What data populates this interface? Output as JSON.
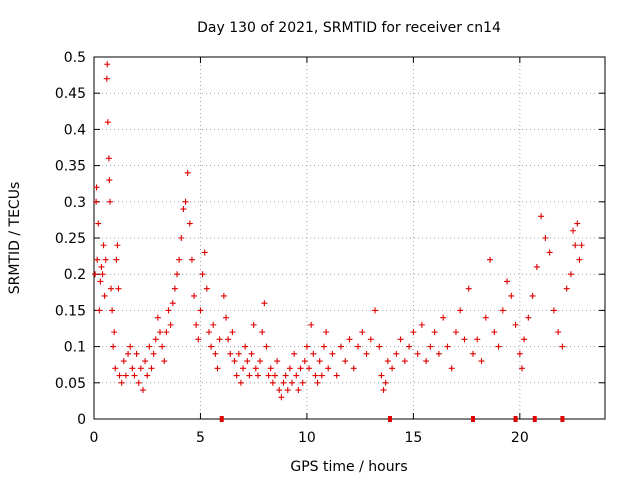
{
  "chart_data": {
    "type": "scatter",
    "title": "Day 130 of 2021, SRMTID for receiver cn14",
    "xlabel": "GPS time / hours",
    "ylabel": "SRMTID / TECUs",
    "xlim": [
      0,
      24
    ],
    "ylim": [
      0,
      0.5
    ],
    "x_ticks": [
      0,
      5,
      10,
      15,
      20
    ],
    "y_ticks": [
      0,
      0.05,
      0.1,
      0.15,
      0.2,
      0.25,
      0.3,
      0.35,
      0.4,
      0.45,
      0.5
    ],
    "x_tick_labels": [
      "0",
      "5",
      "10",
      "15",
      "20"
    ],
    "y_tick_labels": [
      "0",
      "0.05",
      "0.1",
      "0.15",
      "0.2",
      "0.25",
      "0.3",
      "0.35",
      "0.4",
      "0.45",
      "0.5"
    ],
    "grid": true,
    "marker": "+",
    "color": "#e00000",
    "series": [
      {
        "name": "SRMTID",
        "points": [
          [
            0.05,
            0.2
          ],
          [
            0.1,
            0.3
          ],
          [
            0.12,
            0.32
          ],
          [
            0.15,
            0.22
          ],
          [
            0.2,
            0.27
          ],
          [
            0.25,
            0.15
          ],
          [
            0.3,
            0.19
          ],
          [
            0.35,
            0.21
          ],
          [
            0.4,
            0.2
          ],
          [
            0.45,
            0.24
          ],
          [
            0.5,
            0.17
          ],
          [
            0.55,
            0.22
          ],
          [
            0.6,
            0.47
          ],
          [
            0.62,
            0.49
          ],
          [
            0.65,
            0.41
          ],
          [
            0.7,
            0.36
          ],
          [
            0.72,
            0.33
          ],
          [
            0.75,
            0.3
          ],
          [
            0.8,
            0.18
          ],
          [
            0.85,
            0.15
          ],
          [
            0.9,
            0.1
          ],
          [
            0.95,
            0.12
          ],
          [
            1.0,
            0.07
          ],
          [
            1.05,
            0.22
          ],
          [
            1.1,
            0.24
          ],
          [
            1.15,
            0.18
          ],
          [
            1.2,
            0.06
          ],
          [
            1.3,
            0.05
          ],
          [
            1.4,
            0.08
          ],
          [
            1.5,
            0.06
          ],
          [
            1.6,
            0.09
          ],
          [
            1.7,
            0.1
          ],
          [
            1.8,
            0.07
          ],
          [
            1.9,
            0.06
          ],
          [
            2.0,
            0.09
          ],
          [
            2.1,
            0.05
          ],
          [
            2.2,
            0.07
          ],
          [
            2.3,
            0.04
          ],
          [
            2.4,
            0.08
          ],
          [
            2.5,
            0.06
          ],
          [
            2.6,
            0.1
          ],
          [
            2.7,
            0.07
          ],
          [
            2.8,
            0.09
          ],
          [
            2.9,
            0.11
          ],
          [
            3.0,
            0.14
          ],
          [
            3.1,
            0.12
          ],
          [
            3.2,
            0.1
          ],
          [
            3.3,
            0.08
          ],
          [
            3.4,
            0.12
          ],
          [
            3.5,
            0.15
          ],
          [
            3.6,
            0.13
          ],
          [
            3.7,
            0.16
          ],
          [
            3.8,
            0.18
          ],
          [
            3.9,
            0.2
          ],
          [
            4.0,
            0.22
          ],
          [
            4.1,
            0.25
          ],
          [
            4.2,
            0.29
          ],
          [
            4.3,
            0.3
          ],
          [
            4.4,
            0.34
          ],
          [
            4.5,
            0.27
          ],
          [
            4.6,
            0.22
          ],
          [
            4.7,
            0.17
          ],
          [
            4.8,
            0.13
          ],
          [
            4.9,
            0.11
          ],
          [
            5.0,
            0.15
          ],
          [
            5.1,
            0.2
          ],
          [
            5.2,
            0.23
          ],
          [
            5.3,
            0.18
          ],
          [
            5.4,
            0.12
          ],
          [
            5.5,
            0.1
          ],
          [
            5.6,
            0.13
          ],
          [
            5.7,
            0.09
          ],
          [
            5.8,
            0.07
          ],
          [
            5.9,
            0.11
          ],
          [
            6.1,
            0.17
          ],
          [
            6.2,
            0.14
          ],
          [
            6.3,
            0.11
          ],
          [
            6.4,
            0.09
          ],
          [
            6.5,
            0.12
          ],
          [
            6.6,
            0.08
          ],
          [
            6.7,
            0.06
          ],
          [
            6.8,
            0.09
          ],
          [
            6.9,
            0.05
          ],
          [
            7.0,
            0.07
          ],
          [
            7.1,
            0.1
          ],
          [
            7.2,
            0.08
          ],
          [
            7.3,
            0.06
          ],
          [
            7.4,
            0.09
          ],
          [
            7.5,
            0.13
          ],
          [
            7.6,
            0.07
          ],
          [
            7.7,
            0.06
          ],
          [
            7.8,
            0.08
          ],
          [
            7.9,
            0.12
          ],
          [
            8.0,
            0.16
          ],
          [
            8.1,
            0.1
          ],
          [
            8.2,
            0.06
          ],
          [
            8.3,
            0.07
          ],
          [
            8.4,
            0.05
          ],
          [
            8.5,
            0.06
          ],
          [
            8.6,
            0.08
          ],
          [
            8.7,
            0.04
          ],
          [
            8.8,
            0.03
          ],
          [
            8.9,
            0.05
          ],
          [
            9.0,
            0.06
          ],
          [
            9.1,
            0.04
          ],
          [
            9.2,
            0.07
          ],
          [
            9.3,
            0.05
          ],
          [
            9.4,
            0.09
          ],
          [
            9.5,
            0.06
          ],
          [
            9.6,
            0.04
          ],
          [
            9.7,
            0.07
          ],
          [
            9.8,
            0.05
          ],
          [
            9.9,
            0.08
          ],
          [
            10.0,
            0.1
          ],
          [
            10.1,
            0.07
          ],
          [
            10.2,
            0.13
          ],
          [
            10.3,
            0.09
          ],
          [
            10.4,
            0.06
          ],
          [
            10.5,
            0.05
          ],
          [
            10.6,
            0.08
          ],
          [
            10.7,
            0.06
          ],
          [
            10.8,
            0.1
          ],
          [
            10.9,
            0.12
          ],
          [
            11.0,
            0.07
          ],
          [
            11.2,
            0.09
          ],
          [
            11.4,
            0.06
          ],
          [
            11.6,
            0.1
          ],
          [
            11.8,
            0.08
          ],
          [
            12.0,
            0.11
          ],
          [
            12.2,
            0.07
          ],
          [
            12.4,
            0.1
          ],
          [
            12.6,
            0.12
          ],
          [
            12.8,
            0.09
          ],
          [
            13.0,
            0.11
          ],
          [
            13.2,
            0.15
          ],
          [
            13.4,
            0.1
          ],
          [
            13.5,
            0.06
          ],
          [
            13.6,
            0.04
          ],
          [
            13.7,
            0.05
          ],
          [
            13.8,
            0.08
          ],
          [
            14.0,
            0.07
          ],
          [
            14.2,
            0.09
          ],
          [
            14.4,
            0.11
          ],
          [
            14.6,
            0.08
          ],
          [
            14.8,
            0.1
          ],
          [
            15.0,
            0.12
          ],
          [
            15.2,
            0.09
          ],
          [
            15.4,
            0.13
          ],
          [
            15.6,
            0.08
          ],
          [
            15.8,
            0.1
          ],
          [
            16.0,
            0.12
          ],
          [
            16.2,
            0.09
          ],
          [
            16.4,
            0.14
          ],
          [
            16.6,
            0.1
          ],
          [
            16.8,
            0.07
          ],
          [
            17.0,
            0.12
          ],
          [
            17.2,
            0.15
          ],
          [
            17.4,
            0.11
          ],
          [
            17.6,
            0.18
          ],
          [
            17.8,
            0.09
          ],
          [
            18.0,
            0.11
          ],
          [
            18.2,
            0.08
          ],
          [
            18.4,
            0.14
          ],
          [
            18.6,
            0.22
          ],
          [
            18.8,
            0.12
          ],
          [
            19.0,
            0.1
          ],
          [
            19.2,
            0.15
          ],
          [
            19.4,
            0.19
          ],
          [
            19.6,
            0.17
          ],
          [
            19.8,
            0.13
          ],
          [
            20.0,
            0.09
          ],
          [
            20.1,
            0.07
          ],
          [
            20.2,
            0.11
          ],
          [
            20.4,
            0.14
          ],
          [
            20.6,
            0.17
          ],
          [
            20.8,
            0.21
          ],
          [
            21.0,
            0.28
          ],
          [
            21.2,
            0.25
          ],
          [
            21.4,
            0.23
          ],
          [
            21.6,
            0.15
          ],
          [
            21.8,
            0.12
          ],
          [
            22.0,
            0.1
          ],
          [
            22.2,
            0.18
          ],
          [
            22.4,
            0.2
          ],
          [
            22.5,
            0.26
          ],
          [
            22.6,
            0.24
          ],
          [
            22.7,
            0.27
          ],
          [
            22.8,
            0.22
          ],
          [
            22.9,
            0.24
          ]
        ]
      }
    ],
    "data_gaps_hours": [
      6.0,
      13.9,
      17.8,
      19.8,
      20.7,
      22.0
    ]
  }
}
